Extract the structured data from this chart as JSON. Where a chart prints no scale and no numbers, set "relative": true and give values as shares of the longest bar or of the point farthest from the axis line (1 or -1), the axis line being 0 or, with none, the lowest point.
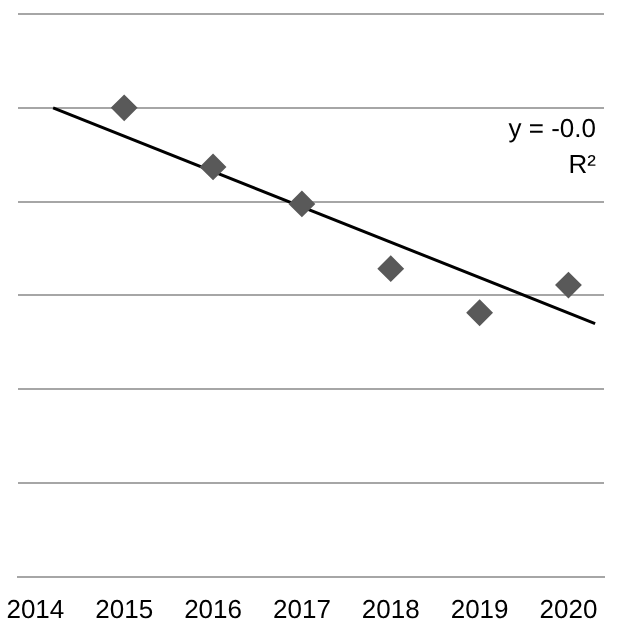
{
  "chart_data": {
    "type": "scatter",
    "relative": true,
    "marker": "diamond",
    "grid": "y",
    "legend": false,
    "xlim": [
      2013.8,
      2020.4
    ],
    "xticks": [
      2014,
      2015,
      2016,
      2017,
      2018,
      2019,
      2020
    ],
    "annotations": [
      "y = -0.0",
      "R²"
    ],
    "series": [
      {
        "color": "#595959",
        "x": [
          2015,
          2016,
          2017,
          2018,
          2019,
          2020
        ],
        "values": [
          1,
          0.874,
          0.795,
          0.657,
          0.563,
          0.622
        ]
      },
      {
        "type": "line",
        "color": "#000000",
        "marker": "none",
        "x": [
          2014.2,
          2020.3
        ],
        "values": [
          1,
          0.54
        ]
      }
    ]
  }
}
